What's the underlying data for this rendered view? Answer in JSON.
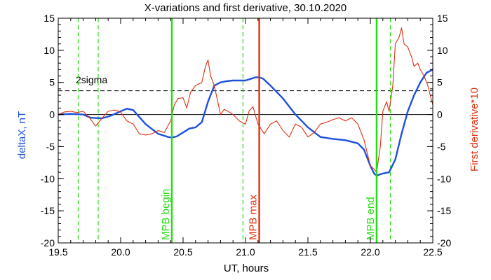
{
  "chart_data": {
    "type": "line",
    "title": "X-variations and first derivative, 30.10.2020",
    "xlabel": "UT, hours",
    "ylabel_left": "deltaX, nT",
    "ylabel_right": "First derivative*10",
    "xlim": [
      19.5,
      22.5
    ],
    "ylim": [
      -20,
      15
    ],
    "x_ticks": [
      "19.5",
      "20.0",
      "20.5",
      "21.0",
      "21.5",
      "22.0",
      "22.5"
    ],
    "y_ticks": [
      "-20",
      "-15",
      "-10",
      "-5",
      "0",
      "5",
      "10",
      "15"
    ],
    "colors": {
      "deltaX": "#1e50dc",
      "derivative": "#e03010",
      "boundary": "#22e010",
      "max": "#e03010",
      "axes": "#000000"
    },
    "sigma": {
      "label": "2sigma",
      "value": 3.7
    },
    "zero_line": 0,
    "dashed_markers": [
      19.66,
      19.82,
      20.98,
      22.16
    ],
    "event_lines": [
      {
        "label": "MPB begin",
        "x": 20.41,
        "color": "#22e010"
      },
      {
        "label": "MPB max",
        "x": 21.11,
        "color": "#e03010"
      },
      {
        "label": "MPB end",
        "x": 22.05,
        "color": "#22e010"
      }
    ],
    "series": [
      {
        "name": "deltaX, nT",
        "color": "#1e50dc",
        "x": [
          19.5,
          19.6,
          19.7,
          19.76,
          19.85,
          19.92,
          20.0,
          20.05,
          20.1,
          20.2,
          20.3,
          20.38,
          20.41,
          20.45,
          20.5,
          20.55,
          20.6,
          20.65,
          20.7,
          20.75,
          20.8,
          20.85,
          20.9,
          21.0,
          21.05,
          21.08,
          21.11,
          21.14,
          21.2,
          21.3,
          21.4,
          21.5,
          21.6,
          21.7,
          21.8,
          21.9,
          21.95,
          22.0,
          22.03,
          22.05,
          22.1,
          22.15,
          22.2,
          22.25,
          22.3,
          22.35,
          22.4,
          22.45,
          22.5
        ],
        "y": [
          0.0,
          0.1,
          0.0,
          -0.5,
          -0.6,
          -0.2,
          0.5,
          0.9,
          0.7,
          -1.5,
          -3.0,
          -3.5,
          -3.6,
          -3.4,
          -2.8,
          -2.2,
          -2.0,
          -1.2,
          2.0,
          4.5,
          5.0,
          5.2,
          5.3,
          5.3,
          5.6,
          5.8,
          5.8,
          5.6,
          4.5,
          2.5,
          0.0,
          -2.0,
          -3.5,
          -3.8,
          -4.0,
          -4.5,
          -5.5,
          -8.0,
          -9.2,
          -9.5,
          -9.2,
          -9.0,
          -7.0,
          -3.0,
          0.5,
          3.0,
          5.0,
          6.5,
          7.0
        ]
      },
      {
        "name": "First derivative*10",
        "color": "#e03010",
        "x": [
          19.5,
          19.55,
          19.6,
          19.65,
          19.7,
          19.75,
          19.8,
          19.85,
          19.9,
          19.95,
          20.0,
          20.05,
          20.1,
          20.15,
          20.2,
          20.25,
          20.3,
          20.35,
          20.4,
          20.43,
          20.46,
          20.5,
          20.53,
          20.56,
          20.6,
          20.65,
          20.68,
          20.7,
          20.72,
          20.75,
          20.8,
          20.83,
          20.86,
          20.9,
          20.95,
          21.0,
          21.03,
          21.06,
          21.1,
          21.15,
          21.2,
          21.25,
          21.3,
          21.35,
          21.4,
          21.45,
          21.5,
          21.55,
          21.6,
          21.65,
          21.7,
          21.75,
          21.8,
          21.85,
          21.9,
          21.95,
          22.0,
          22.03,
          22.05,
          22.08,
          22.1,
          22.13,
          22.15,
          22.18,
          22.2,
          22.23,
          22.25,
          22.27,
          22.3,
          22.33,
          22.35,
          22.38,
          22.4,
          22.43,
          22.46,
          22.48,
          22.5
        ],
        "y": [
          0.0,
          0.4,
          0.5,
          0.3,
          0.5,
          -0.5,
          -1.8,
          -0.6,
          0.5,
          0.7,
          0.4,
          -1.0,
          -1.5,
          -3.0,
          -3.2,
          -3.0,
          -2.5,
          -2.8,
          -1.0,
          1.5,
          2.5,
          2.6,
          1.0,
          3.5,
          4.5,
          5.0,
          7.5,
          8.5,
          6.0,
          4.5,
          0.0,
          0.8,
          0.5,
          0.0,
          -1.0,
          -1.5,
          0.6,
          1.2,
          -1.5,
          -3.0,
          -1.5,
          -1.0,
          -2.5,
          -3.5,
          -1.5,
          -2.0,
          -3.5,
          -2.8,
          -1.5,
          -1.2,
          -0.8,
          -0.5,
          -1.0,
          -0.5,
          -1.5,
          -4.0,
          -8.0,
          -8.5,
          -9.0,
          -5.0,
          0.5,
          2.0,
          0.5,
          4.5,
          11.0,
          12.0,
          13.5,
          11.0,
          10.5,
          9.0,
          7.5,
          8.0,
          7.0,
          6.0,
          4.5,
          3.0,
          1.5
        ]
      }
    ]
  }
}
